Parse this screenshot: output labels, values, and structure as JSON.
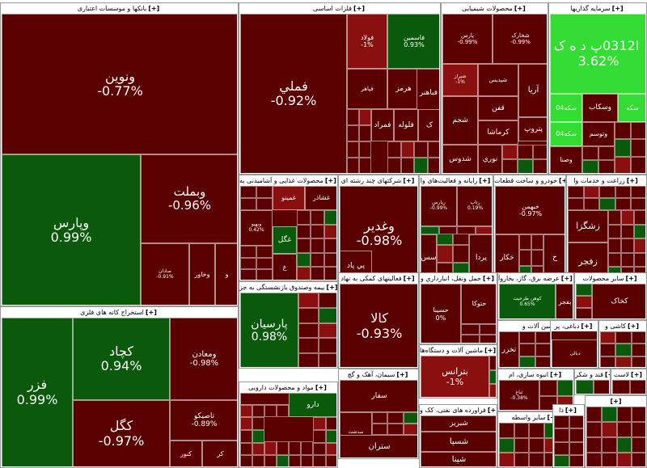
{
  "colors": {
    "strong_negative": "#5b0000",
    "mild_negative": "#8a1010",
    "strong_positive": "#0b5a0b",
    "mid_positive": "#1d8f1d",
    "bright_positive": "#33dd33",
    "neutral": "#6a0000"
  },
  "chart_data": {
    "type": "treemap",
    "sectors": [
      {
        "id": "banks",
        "title": "بانکها و موسسات اعتباری",
        "cells": [
          {
            "symbol": "ونوین",
            "change": "-0.77%"
          },
          {
            "symbol": "وپارس",
            "change": "0.99%"
          },
          {
            "symbol": "وبملت",
            "change": "-0.96%"
          },
          {
            "symbol": "صادان",
            "change": "-0.91%"
          },
          {
            "symbol": "وخاور",
            "change": ""
          },
          {
            "symbol": "و",
            "change": ""
          }
        ]
      },
      {
        "id": "mining",
        "title": "استخراج کانه های فلزی",
        "cells": [
          {
            "symbol": "فزر",
            "change": "0.99%"
          },
          {
            "symbol": "کچاد",
            "change": "0.94%"
          },
          {
            "symbol": "ومعادن",
            "change": "-0.98%"
          },
          {
            "symbol": "کگل",
            "change": "-0.97%"
          },
          {
            "symbol": "تاصیکو",
            "change": "-0.89%"
          },
          {
            "symbol": "کنور",
            "change": ""
          },
          {
            "symbol": "کر",
            "change": ""
          }
        ]
      },
      {
        "id": "metals",
        "title": "فلزات اساسی",
        "cells": [
          {
            "symbol": "فملي",
            "change": "-0.92%"
          },
          {
            "symbol": "فولاد",
            "change": "-1%"
          },
          {
            "symbol": "فاسمين",
            "change": "0.93%"
          },
          {
            "symbol": "هرمز",
            "change": ""
          },
          {
            "symbol": "فباهنر",
            "change": ""
          },
          {
            "symbol": "فپاهر",
            "change": ""
          },
          {
            "symbol": "فلوله",
            "change": ""
          },
          {
            "symbol": "فمراد",
            "change": ""
          },
          {
            "symbol": "ک",
            "change": ""
          }
        ]
      },
      {
        "id": "chemicals",
        "title": "محصولات شیمیایی",
        "cells": [
          {
            "symbol": "پارس",
            "change": "-0.99%"
          },
          {
            "symbol": "شخارک",
            "change": "-0.99%"
          },
          {
            "symbol": "شیراز",
            "change": "-1%"
          },
          {
            "symbol": "آریا",
            "change": ""
          },
          {
            "symbol": "شپدیس",
            "change": ""
          },
          {
            "symbol": "پتروپ",
            "change": ""
          },
          {
            "symbol": "شجم",
            "change": ""
          },
          {
            "symbol": "شدوس",
            "change": ""
          },
          {
            "symbol": "نوري",
            "change": ""
          },
          {
            "symbol": "کرماشا",
            "change": ""
          },
          {
            "symbol": "قفن",
            "change": ""
          }
        ]
      },
      {
        "id": "investment",
        "title": "سرمایه گذاریها",
        "cells": [
          {
            "symbol": "ا0312پ د ه ک ‌",
            "change": "3.62%"
          },
          {
            "symbol": "سکه‌04",
            "change": ""
          },
          {
            "symbol": "وسکاب",
            "change": ""
          },
          {
            "symbol": "سکه",
            "change": ""
          },
          {
            "symbol": "سکه‌04",
            "change": ""
          },
          {
            "symbol": "وتوسم",
            "change": ""
          },
          {
            "symbol": "وصنا",
            "change": ""
          }
        ]
      },
      {
        "id": "food",
        "title": "محصولات غذایی و آشامیدنی به",
        "cells": [
          {
            "symbol": "غمينو",
            "change": ""
          },
          {
            "symbol": "غشاذر",
            "change": ""
          },
          {
            "symbol": "وبهپو",
            "change": "0.42%"
          },
          {
            "symbol": "غگل",
            "change": ""
          },
          {
            "symbol": "غ",
            "change": ""
          }
        ]
      },
      {
        "id": "multi",
        "title": "شرکتهای چند رشته ای",
        "cells": [
          {
            "symbol": "وغدير",
            "change": "-0.98%"
          },
          {
            "symbol": "پي پاد",
            "change": ""
          }
        ]
      },
      {
        "id": "it",
        "title": "رایانه و فعالیت‌های وا",
        "cells": [
          {
            "symbol": "رپارس",
            "change": "-0.99%"
          },
          {
            "symbol": "رتاپ",
            "change": "0.19%"
          },
          {
            "symbol": "پردا",
            "change": ""
          },
          {
            "symbol": "سس",
            "change": ""
          }
        ]
      },
      {
        "id": "auto",
        "title": "خودرو و ساخت قطعات",
        "cells": [
          {
            "symbol": "خبهمن",
            "change": "-0.97%"
          },
          {
            "symbol": "خكار",
            "change": ""
          },
          {
            "symbol": "خ",
            "change": ""
          }
        ]
      },
      {
        "id": "agri",
        "title": "زراعت و خدمات وا",
        "cells": [
          {
            "symbol": "زشگزا",
            "change": ""
          },
          {
            "symbol": "زفجر",
            "change": ""
          }
        ]
      },
      {
        "id": "pension",
        "title": "بیمه وصندوق بازنشستگی به جز",
        "cells": [
          {
            "symbol": "پارسيان",
            "change": "0.98%"
          }
        ]
      },
      {
        "id": "trade",
        "title": "فعالیتهای کمکی به نهاد",
        "cells": [
          {
            "symbol": "کالا",
            "change": "-0.93%"
          }
        ]
      },
      {
        "id": "transport",
        "title": "حمل ونقل، انبارداري و",
        "cells": [
          {
            "symbol": "حسينا",
            "change": "0%"
          },
          {
            "symbol": "حتوكا",
            "change": ""
          }
        ]
      },
      {
        "id": "power",
        "title": "عرضه برق، گاز، بخاروآ",
        "cells": [
          {
            "symbol": "کوهن طرحیت",
            "change": "0.65%"
          },
          {
            "symbol": "بفجر",
            "change": ""
          }
        ]
      },
      {
        "id": "other_prod",
        "title": "سایر محصولات",
        "cells": [
          {
            "symbol": "کخاک",
            "change": ""
          }
        ]
      },
      {
        "id": "machinery",
        "title": "ماشین آلات و",
        "cells": [
          {
            "symbol": "تخزر",
            "change": ""
          }
        ]
      },
      {
        "id": "textile",
        "title": "دباغی، پر",
        "cells": [
          {
            "symbol": "دبالی",
            "change": ""
          }
        ]
      },
      {
        "id": "ceramic",
        "title": "کاشی و",
        "cells": []
      },
      {
        "id": "devices",
        "title": "ماشین آلات و دستگاه‌ها",
        "cells": [
          {
            "symbol": "بترانس",
            "change": "-1%"
          }
        ]
      },
      {
        "id": "cement",
        "title": "سیمان، آهک و گچ",
        "cells": [
          {
            "symbol": "سفار",
            "change": ""
          },
          {
            "symbol": "سدشت",
            "change": "0.76%"
          },
          {
            "symbol": "ستران",
            "change": ""
          }
        ]
      },
      {
        "id": "mass",
        "title": "انبوه سازی، ام",
        "cells": [
          {
            "symbol": "ثباغ",
            "change": "-0.38%"
          }
        ]
      },
      {
        "id": "sugar",
        "title": "قند و شکر",
        "cells": []
      },
      {
        "id": "plastic",
        "title": "لاست",
        "cells": []
      },
      {
        "id": "oil",
        "title": "فراورده های نفتی، کک و",
        "cells": [
          {
            "symbol": "شبريز",
            "change": ""
          },
          {
            "symbol": "شسپا",
            "change": ""
          },
          {
            "symbol": "شپنا",
            "change": ""
          }
        ]
      },
      {
        "id": "pharma",
        "title": "مواد و محصولات دارویی",
        "cells": [
          {
            "symbol": "دکپ",
            "change": ""
          },
          {
            "symbol": "دارو",
            "change": ""
          }
        ]
      },
      {
        "id": "service",
        "title": "سایر واسطه",
        "cells": []
      },
      {
        "id": "misc1",
        "title": "ذا",
        "cells": []
      },
      {
        "id": "misc2",
        "title": "",
        "cells": []
      }
    ]
  }
}
